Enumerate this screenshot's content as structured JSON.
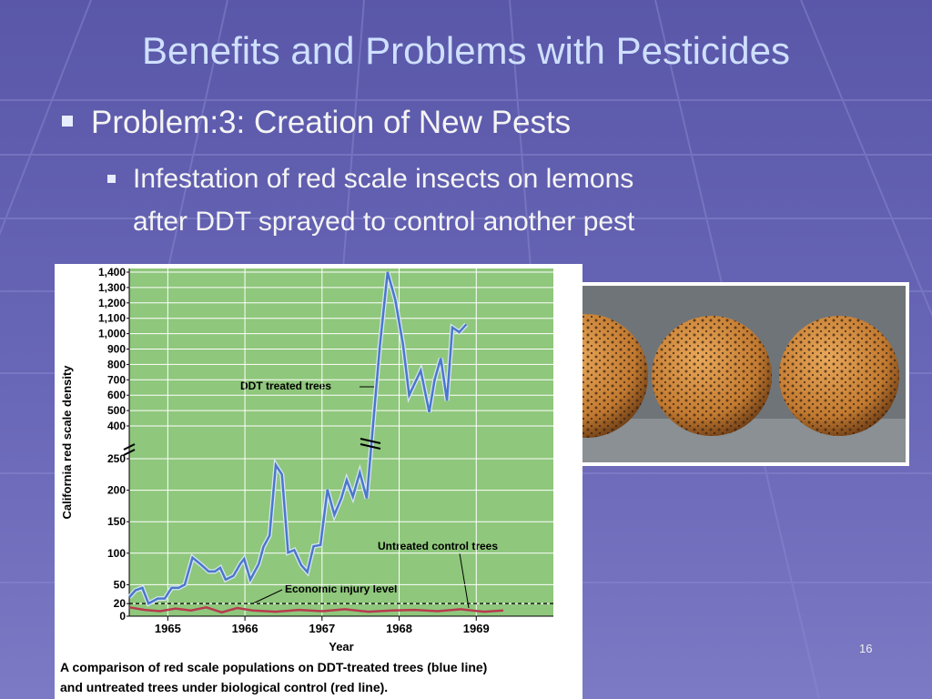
{
  "slide": {
    "title": "Benefits and Problems with Pesticides",
    "bullet": "Problem:3: Creation of New Pests",
    "sub_bullet_lines": [
      "Infestation of red scale insects on lemons",
      "after DDT sprayed to control another pest"
    ],
    "page_number": "16"
  },
  "chart_data": {
    "type": "line",
    "ylabel": "California red scale density",
    "xlabel": "Year",
    "caption_lines": [
      "A comparison of red scale populations on DDT-treated trees (blue line)",
      "and untreated trees under biological control (red line)."
    ],
    "annotations": [
      "DDT treated trees",
      "Untreated control trees",
      "Economic injury level"
    ],
    "threshold": 20,
    "xlim": [
      1964.5,
      1970
    ],
    "xticks": [
      1965,
      1966,
      1967,
      1968,
      1969
    ],
    "ylim": [
      0,
      1400
    ],
    "axis_break": [
      250,
      400
    ],
    "yticks": [
      0,
      20,
      50,
      100,
      150,
      200,
      250,
      400,
      500,
      600,
      700,
      800,
      900,
      {
        "value": 1000,
        "label": "1,000"
      },
      {
        "value": 1100,
        "label": "1,100"
      },
      {
        "value": 1200,
        "label": "1,200"
      },
      {
        "value": 1300,
        "label": "1,300"
      },
      {
        "value": 1400,
        "label": "1,400"
      }
    ],
    "grid": true,
    "series": [
      {
        "name": "DDT treated trees",
        "color": "#4a78c8",
        "x": [
          1964.5,
          1964.58,
          1964.67,
          1964.75,
          1964.87,
          1964.96,
          1965.05,
          1965.14,
          1965.22,
          1965.32,
          1965.42,
          1965.53,
          1965.61,
          1965.68,
          1965.75,
          1965.85,
          1965.94,
          1965.99,
          1966.07,
          1966.18,
          1966.24,
          1966.32,
          1966.4,
          1966.48,
          1966.56,
          1966.64,
          1966.73,
          1966.81,
          1966.89,
          1966.98,
          1967.07,
          1967.16,
          1967.25,
          1967.32,
          1967.4,
          1967.49,
          1967.58,
          1967.75,
          1967.85,
          1967.95,
          1968.05,
          1968.13,
          1968.28,
          1968.39,
          1968.46,
          1968.54,
          1968.62,
          1968.69,
          1968.78,
          1968.87
        ],
        "values": [
          30,
          41,
          45,
          20,
          28,
          28,
          45,
          45,
          50,
          93,
          83,
          71,
          71,
          77,
          58,
          64,
          83,
          91,
          58,
          83,
          110,
          128,
          240,
          225,
          101,
          105,
          81,
          70,
          111,
          113,
          201,
          161,
          187,
          216,
          190,
          228,
          187,
          920,
          1400,
          1220,
          930,
          600,
          760,
          490,
          700,
          840,
          565,
          1040,
          1010,
          1060
        ]
      },
      {
        "name": "Untreated control trees",
        "color": "#b83a4e",
        "x": [
          1964.5,
          1964.7,
          1964.9,
          1965.1,
          1965.3,
          1965.5,
          1965.7,
          1965.9,
          1966.1,
          1966.4,
          1966.7,
          1967.0,
          1967.3,
          1967.6,
          1967.9,
          1968.2,
          1968.5,
          1968.8,
          1969.1,
          1969.35
        ],
        "values": [
          14,
          10,
          8,
          12,
          9,
          14,
          6,
          13,
          9,
          7,
          10,
          8,
          11,
          7,
          9,
          10,
          8,
          11,
          7,
          9
        ]
      }
    ]
  }
}
